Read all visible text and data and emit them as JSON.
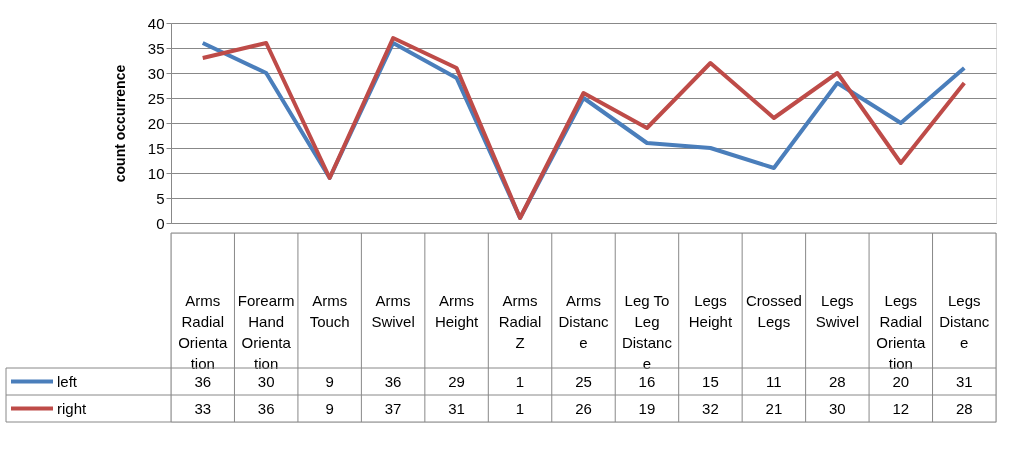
{
  "chart_data": {
    "type": "line",
    "ylabel": "count occurrence",
    "categories": [
      "Arms Radial Orientation",
      "Forearm Hand Orientation",
      "Arms Touch",
      "Arms Swivel",
      "Arms Height",
      "Arms Radial Z",
      "Arms Distance",
      "Leg To Leg Distance",
      "Legs Height",
      "Crossed Legs",
      "Legs Swivel",
      "Legs Radial Orientation",
      "Legs Distance"
    ],
    "series": [
      {
        "name": "left",
        "color": "#4a7ebb",
        "values": [
          36,
          30,
          9,
          36,
          29,
          1,
          25,
          16,
          15,
          11,
          28,
          20,
          31
        ]
      },
      {
        "name": "right",
        "color": "#be4b48",
        "values": [
          33,
          36,
          9,
          37,
          31,
          1,
          26,
          19,
          32,
          21,
          30,
          12,
          28
        ]
      }
    ],
    "ylim": [
      0,
      40
    ],
    "yticks": [
      0,
      5,
      10,
      15,
      20,
      25,
      30,
      35,
      40
    ],
    "grid": "y",
    "legend": "bottom left",
    "data_labels": true,
    "marker": "none",
    "line_style": "solid"
  }
}
